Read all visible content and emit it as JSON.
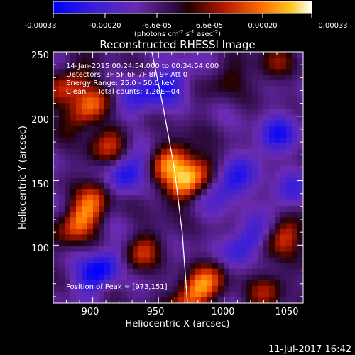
{
  "colorbar": {
    "ticks": [
      "-0.00033",
      "-0.00020",
      "-6.6e-05",
      "6.6e-05",
      "0.00020",
      "0.00033"
    ],
    "unit_label": "(photons cm",
    "unit_sup1": "-2",
    "unit_mid1": " s",
    "unit_sup2": "-1",
    "unit_mid2": " asec",
    "unit_sup3": "-2",
    "unit_end": ")"
  },
  "footer": {
    "timestamp": "11-Jul-2017 16:42"
  },
  "colors": {
    "background": "#000000",
    "axes": "#ffffff",
    "limb": "#ffffff"
  },
  "chart_data": {
    "type": "heatmap",
    "title": "Reconstructed RHESSI Image",
    "xlabel": "Heliocentric X (arcsec)",
    "ylabel": "Heliocentric Y (arcsec)",
    "xlim": [
      870,
      1060
    ],
    "ylim": [
      55,
      250
    ],
    "x_ticks": [
      "900",
      "950",
      "1000",
      "1050"
    ],
    "x_tick_values": [
      900,
      950,
      1000,
      1050
    ],
    "y_ticks": [
      "100",
      "150",
      "200",
      "250"
    ],
    "y_tick_values": [
      100,
      150,
      200,
      250
    ],
    "color_range": [
      -0.00033,
      0.00033
    ],
    "annotations": [
      "14-Jan-2015 00:24:54.000 to 00:34:54.000",
      "Detectors: 3F 5F 6F 7F 8F 9F Att 0",
      "Energy Range: 25.0 - 50.0 keV",
      "Clean     Total counts: 1.26E+04"
    ],
    "peak_label": "Position of Peak = [973,151]",
    "peak": [
      973,
      151
    ],
    "sources": [
      {
        "x": 973,
        "y": 151,
        "value": 0.00033
      },
      {
        "x": 959,
        "y": 165,
        "value": 0.00026
      },
      {
        "x": 895,
        "y": 205,
        "value": 0.00026
      },
      {
        "x": 882,
        "y": 225,
        "value": 0.0002
      },
      {
        "x": 912,
        "y": 178,
        "value": 0.00018
      },
      {
        "x": 890,
        "y": 118,
        "value": 0.00026
      },
      {
        "x": 902,
        "y": 138,
        "value": 0.00018
      },
      {
        "x": 938,
        "y": 95,
        "value": 0.00018
      },
      {
        "x": 975,
        "y": 60,
        "value": 0.00026
      },
      {
        "x": 990,
        "y": 75,
        "value": 0.00015
      },
      {
        "x": 1046,
        "y": 107,
        "value": 0.0002
      },
      {
        "x": 1033,
        "y": 65,
        "value": 0.00015
      },
      {
        "x": 1038,
        "y": 240,
        "value": 0.00012
      },
      {
        "x": 1002,
        "y": 230,
        "value": 0.0001
      },
      {
        "x": 925,
        "y": 155,
        "value": -0.00022
      },
      {
        "x": 1005,
        "y": 148,
        "value": -0.0002
      },
      {
        "x": 905,
        "y": 80,
        "value": -0.00025
      },
      {
        "x": 960,
        "y": 225,
        "value": -0.00015
      },
      {
        "x": 1040,
        "y": 185,
        "value": -0.00018
      },
      {
        "x": 1015,
        "y": 100,
        "value": -0.0002
      },
      {
        "x": 935,
        "y": 215,
        "value": -0.00015
      },
      {
        "x": 1048,
        "y": 140,
        "value": -0.00012
      }
    ],
    "limb_points": [
      [
        945,
        250
      ],
      [
        953,
        210
      ],
      [
        962,
        160
      ],
      [
        968,
        110
      ],
      [
        972,
        55
      ]
    ]
  }
}
